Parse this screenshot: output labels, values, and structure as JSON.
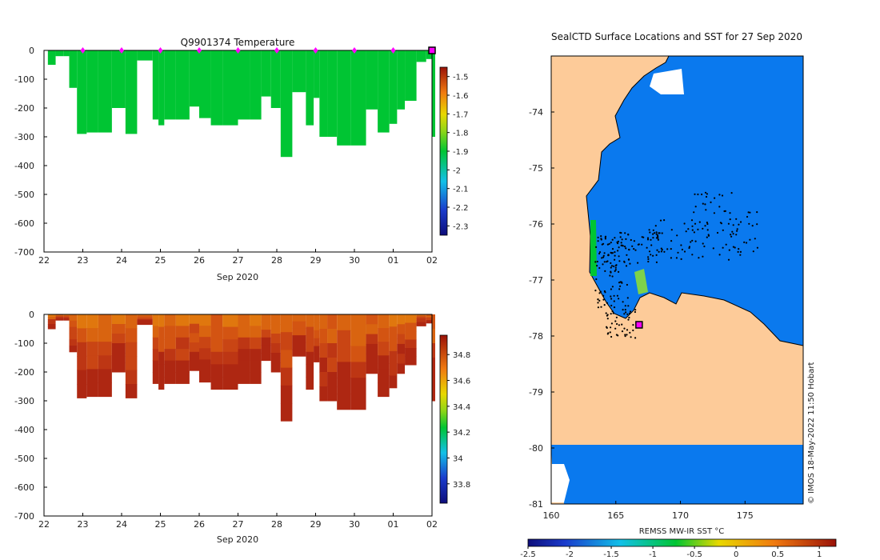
{
  "colors": {
    "land": "#fdcb99",
    "ocean": "#0a79ee",
    "temp_green": "#00c533",
    "marker": "#ff00ff",
    "axis": "#000000"
  },
  "chart_data": [
    {
      "type": "heatmap",
      "title": "Q9901374  Temperature",
      "xlabel": "Sep 2020",
      "ylabel": "",
      "x_tick_labels": [
        "22",
        "23",
        "24",
        "25",
        "26",
        "27",
        "28",
        "29",
        "30",
        "01",
        "02"
      ],
      "x_range": [
        22,
        32
      ],
      "ylim": [
        -700,
        0
      ],
      "y_ticks": [
        0,
        -100,
        -200,
        -300,
        -400,
        -500,
        -600,
        -700
      ],
      "profile_depth_days": [
        22.1,
        22.3,
        22.5,
        22.65,
        22.85,
        23.1,
        23.4,
        23.75,
        24.1,
        24.4,
        24.8,
        24.95,
        25.1,
        25.4,
        25.75,
        26.0,
        26.3,
        26.6,
        27.0,
        27.3,
        27.6,
        27.85,
        28.1,
        28.4,
        28.75,
        28.95,
        29.1,
        29.3,
        29.55,
        29.9,
        30.3,
        30.6,
        30.9,
        31.1,
        31.3,
        31.6,
        31.85,
        32.0
      ],
      "profile_depth_m": [
        50,
        20,
        20,
        130,
        290,
        285,
        285,
        200,
        290,
        35,
        240,
        260,
        240,
        240,
        195,
        235,
        260,
        260,
        240,
        240,
        160,
        200,
        370,
        145,
        260,
        165,
        300,
        300,
        330,
        330,
        205,
        285,
        255,
        205,
        175,
        40,
        30,
        300
      ],
      "colorbar": {
        "ticks": [
          -1.5,
          -1.6,
          -1.7,
          -1.8,
          -1.9,
          -2,
          -2.1,
          -2.2,
          -2.3
        ],
        "range": [
          -2.35,
          -1.45
        ]
      },
      "profile_markers_days": [
        23,
        24,
        25,
        26,
        27,
        28,
        29,
        30,
        31
      ],
      "current_marker_day": 32.0,
      "values_uniform": -1.9
    },
    {
      "type": "heatmap",
      "title": "",
      "xlabel": "Sep 2020",
      "ylabel": "",
      "x_tick_labels": [
        "22",
        "23",
        "24",
        "25",
        "26",
        "27",
        "28",
        "29",
        "30",
        "01",
        "02"
      ],
      "x_range": [
        22,
        32
      ],
      "ylim": [
        -700,
        0
      ],
      "y_ticks": [
        0,
        -100,
        -200,
        -300,
        -400,
        -500,
        -600,
        -700
      ],
      "colorbar": {
        "ticks": [
          34.8,
          34.6,
          34.4,
          34.2,
          34,
          33.8
        ],
        "range": [
          33.65,
          34.95
        ]
      },
      "values_range": [
        34.6,
        34.95
      ]
    },
    {
      "type": "heatmap",
      "title": "SealCTD Surface Locations and SST for 27 Sep 2020",
      "xlabel": "",
      "ylabel": "",
      "x_tick_labels": [
        "160",
        "165",
        "170",
        "175"
      ],
      "x_range": [
        160,
        179.5
      ],
      "y_tick_labels": [
        "-74",
        "-75",
        "-76",
        "-77",
        "-78",
        "-79",
        "-80",
        "-81"
      ],
      "y_range": [
        -81,
        -73
      ],
      "colorbar": {
        "label": "REMSS MW-IR SST °C",
        "ticks": [
          "-2.5",
          "-2",
          "-1.5",
          "-1",
          "-0.5",
          "0",
          "0.5",
          "1"
        ],
        "range": [
          -2.5,
          1.2
        ]
      },
      "credit": "© IMOS 18-May-2022 11:50 Hobart",
      "current_position": [
        166.8,
        -77.8
      ]
    }
  ]
}
